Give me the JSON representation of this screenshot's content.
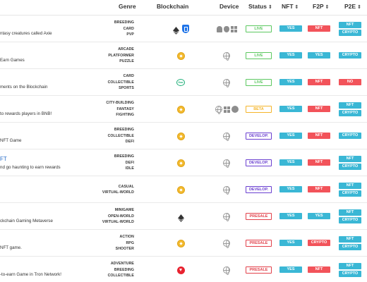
{
  "header": {
    "genre": "Genre",
    "blockchain": "Blockchain",
    "device": "Device",
    "status": "Status",
    "nft": "NFT",
    "f2p": "F2P",
    "p2e": "P2E",
    "sort_glyph": "⇕"
  },
  "colors": {
    "teal": "#3ab7d5",
    "red": "#f2535a",
    "live": "#5cc860",
    "beta": "#f5b52a",
    "develop": "#6a3fd0",
    "presale": "#e2404a"
  },
  "rows": [
    {
      "title": "",
      "desc": "ntasy creatures called Axie",
      "genres": [
        "BREEDING",
        "CARD",
        "PVP"
      ],
      "chains": [
        "ethereum-icon",
        "ronin-icon"
      ],
      "devices": [
        "android-icon",
        "apple-icon",
        "windows-icon"
      ],
      "status": "LIVE",
      "status_color": "#5cc860",
      "nft": "YES",
      "f2p": "NFT",
      "p2e": [
        "NFT",
        "CRYPTO"
      ]
    },
    {
      "title": "",
      "desc": "Earn Games",
      "genres": [
        "ARCADE",
        "PLATFORMER",
        "PUZZLE"
      ],
      "chains": [
        "bnb-icon"
      ],
      "devices": [
        "globe-icon"
      ],
      "status": "LIVE",
      "status_color": "#5cc860",
      "nft": "YES",
      "f2p": "YES",
      "p2e": [
        "CRYPTO"
      ]
    },
    {
      "title": "",
      "desc": "ments on the Blockchain",
      "genres": [
        "CARD",
        "COLLECTIBLE",
        "SPORTS"
      ],
      "chains": [
        "flow-icon"
      ],
      "devices": [
        "globe-icon"
      ],
      "status": "LIVE",
      "status_color": "#5cc860",
      "nft": "YES",
      "f2p": "NFT",
      "p2e": [
        "NO"
      ],
      "flow_label": "flow"
    },
    {
      "title": "",
      "desc": "to rewards players in BNB!",
      "genres": [
        "CITY-BUILDING",
        "FANTASY",
        "FIGHTING"
      ],
      "chains": [
        "bnb-icon"
      ],
      "devices": [
        "globe-icon",
        "windows-icon",
        "steam-icon"
      ],
      "status": "BETA",
      "status_color": "#f5b52a",
      "nft": "YES",
      "f2p": "NFT",
      "p2e": [
        "NFT",
        "CRYPTO"
      ]
    },
    {
      "title": "",
      "desc": "NFT Game",
      "genres": [
        "BREEDING",
        "COLLECTIBLE",
        "DEFI"
      ],
      "chains": [
        "bnb-icon"
      ],
      "devices": [
        "globe-icon"
      ],
      "status": "DEVELOP.",
      "status_color": "#6a3fd0",
      "nft": "YES",
      "f2p": "NFT",
      "p2e": [
        "CRYPTO"
      ]
    },
    {
      "title": "FT",
      "desc": "nd go haunting to earn rewards",
      "genres": [
        "BREEDING",
        "DEFI",
        "IDLE"
      ],
      "chains": [
        "bnb-icon"
      ],
      "devices": [
        "globe-icon"
      ],
      "status": "DEVELOP.",
      "status_color": "#6a3fd0",
      "nft": "YES",
      "f2p": "NFT",
      "p2e": [
        "NFT",
        "CRYPTO"
      ]
    },
    {
      "title": "",
      "desc": "",
      "genres": [
        "CASUAL",
        "VIRTUAL-WORLD"
      ],
      "chains": [
        "bnb-icon"
      ],
      "devices": [
        "globe-icon"
      ],
      "status": "DEVELOP.",
      "status_color": "#6a3fd0",
      "nft": "YES",
      "f2p": "NFT",
      "p2e": [
        "NFT",
        "CRYPTO"
      ]
    },
    {
      "title": "",
      "desc": "ckchain Gaming Metaverse",
      "genres": [
        "MINIGAME",
        "OPEN-WORLD",
        "VIRTUAL-WORLD"
      ],
      "chains": [
        "ethereum-icon"
      ],
      "devices": [
        "globe-icon"
      ],
      "status": "PRESALE",
      "status_color": "#e2404a",
      "nft": "YES",
      "f2p": "YES",
      "p2e": [
        "NFT",
        "CRYPTO"
      ]
    },
    {
      "title": "",
      "desc": "NFT game.",
      "genres": [
        "ACTION",
        "RPG",
        "SHOOTER"
      ],
      "chains": [
        "bnb-icon"
      ],
      "devices": [
        "globe-icon"
      ],
      "status": "PRESALE",
      "status_color": "#e2404a",
      "nft": "YES",
      "f2p": "CRYPTO",
      "p2e": [
        "NFT",
        "CRYPTO"
      ]
    },
    {
      "title": "",
      "desc": "-to-earn Game in Tron Network!",
      "genres": [
        "ADVENTURE",
        "BREEDING",
        "COLLECTIBLE"
      ],
      "chains": [
        "tron-icon"
      ],
      "devices": [
        "globe-icon"
      ],
      "status": "PRESALE",
      "status_color": "#e2404a",
      "nft": "YES",
      "f2p": "NFT",
      "p2e": [
        "NFT",
        "CRYPTO"
      ]
    }
  ]
}
